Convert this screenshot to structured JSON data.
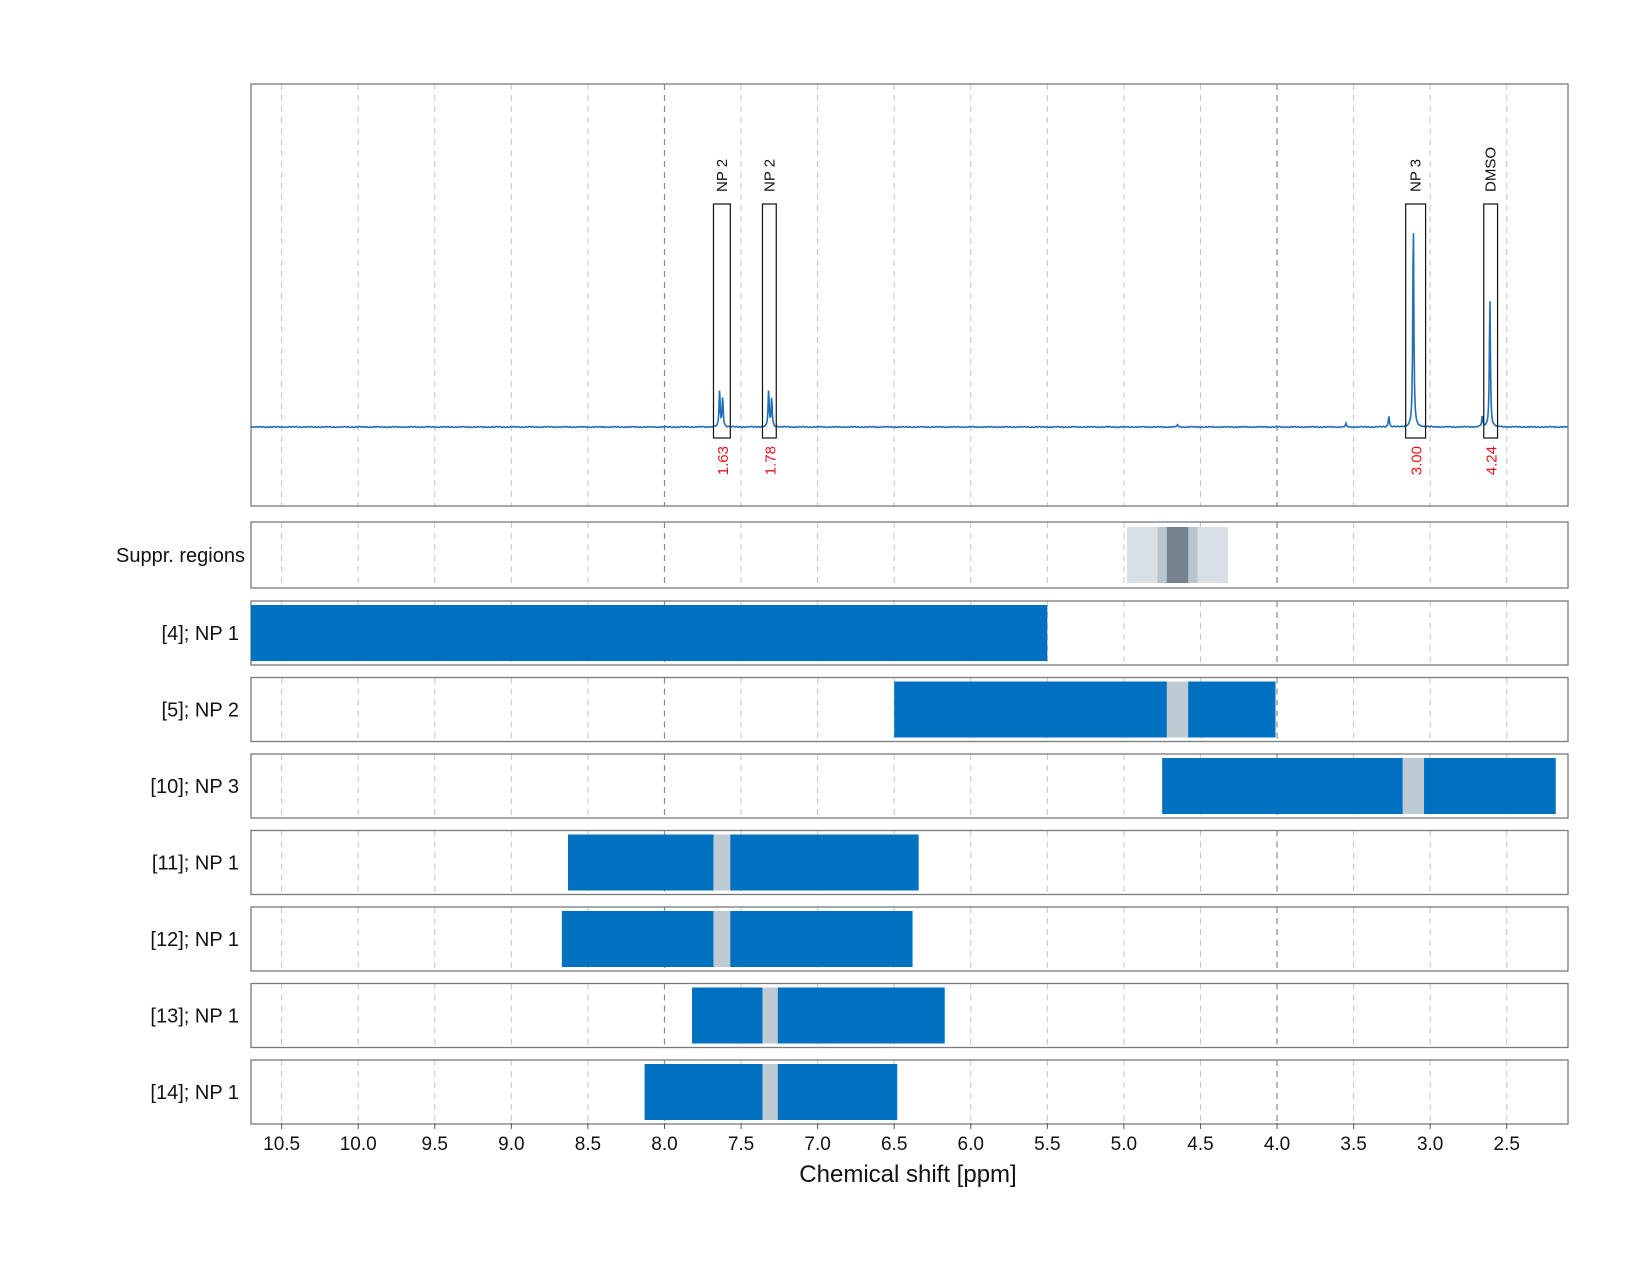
{
  "chart_data": {
    "type": "line",
    "xlabel": "Chemical shift [ppm]",
    "x_reversed": true,
    "xlim": [
      10.7,
      2.1
    ],
    "x_ticks": [
      "10.5",
      "10.0",
      "9.5",
      "9.0",
      "8.5",
      "8.0",
      "7.5",
      "7.0",
      "6.5",
      "6.0",
      "5.5",
      "5.0",
      "4.5",
      "4.0",
      "3.5",
      "3.0",
      "2.5"
    ],
    "major_grid_ppm": [
      8.0,
      4.0
    ],
    "colors": {
      "spectrum": "#1f6fb8",
      "bar": "#0070c0",
      "gap": "#bfcbd3",
      "integral": "#e8141b",
      "suppr_outer": "#d8e0e6",
      "suppr_mid": "#b8c5cf",
      "suppr_inner": "#75838f"
    },
    "spectrum": {
      "baseline": 0,
      "ymax": 1.0,
      "peaks": [
        {
          "x": 7.64,
          "h": 0.17
        },
        {
          "x": 7.62,
          "h": 0.14
        },
        {
          "x": 7.32,
          "h": 0.17
        },
        {
          "x": 7.3,
          "h": 0.14
        },
        {
          "x": 4.65,
          "h": 0.01
        },
        {
          "x": 3.55,
          "h": 0.015
        },
        {
          "x": 3.27,
          "h": 0.055
        },
        {
          "x": 3.11,
          "h": 0.97
        },
        {
          "x": 2.66,
          "h": 0.05
        },
        {
          "x": 2.61,
          "h": 0.6
        }
      ]
    },
    "annotations": [
      {
        "label": "NP 2",
        "x_from": 7.68,
        "x_to": 7.57,
        "integral": "1.63"
      },
      {
        "label": "NP 2",
        "x_from": 7.36,
        "x_to": 7.27,
        "integral": "1.78"
      },
      {
        "label": "NP 3",
        "x_from": 3.16,
        "x_to": 3.03,
        "integral": "3.00"
      },
      {
        "label": "DMSO",
        "x_from": 2.65,
        "x_to": 2.56,
        "integral": "4.24"
      }
    ],
    "suppression": {
      "label": "Suppr. regions",
      "outer": [
        4.98,
        4.32
      ],
      "mid": [
        4.78,
        4.52
      ],
      "inner": [
        4.72,
        4.58
      ]
    },
    "rows": [
      {
        "label": "[4]; NP 1",
        "range": [
          10.7,
          5.5
        ],
        "gap": null
      },
      {
        "label": "[5]; NP 2",
        "range": [
          6.5,
          4.01
        ],
        "gap": [
          4.72,
          4.58
        ]
      },
      {
        "label": "[10]; NP 3",
        "range": [
          4.75,
          2.18
        ],
        "gap": [
          3.18,
          3.04
        ]
      },
      {
        "label": "[11]; NP 1",
        "range": [
          8.63,
          6.34
        ],
        "gap": [
          7.68,
          7.57
        ]
      },
      {
        "label": "[12]; NP 1",
        "range": [
          8.67,
          6.38
        ],
        "gap": [
          7.68,
          7.57
        ]
      },
      {
        "label": "[13]; NP 1",
        "range": [
          7.82,
          6.17
        ],
        "gap": [
          7.36,
          7.26
        ]
      },
      {
        "label": "[14]; NP 1",
        "range": [
          8.13,
          6.48
        ],
        "gap": [
          7.36,
          7.26
        ]
      }
    ]
  }
}
